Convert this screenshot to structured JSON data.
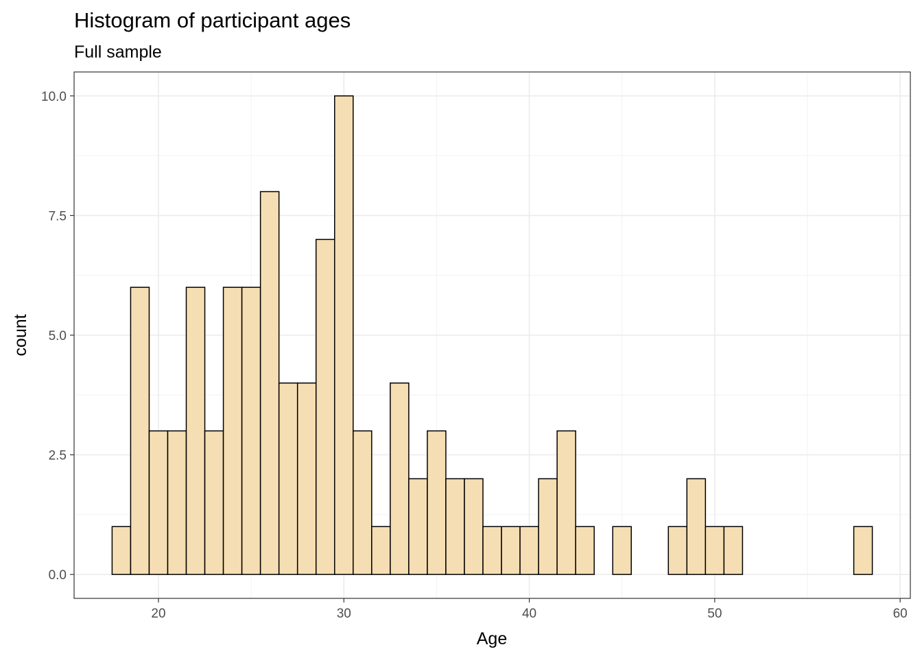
{
  "chart_data": {
    "type": "bar",
    "title": "Histogram of participant ages",
    "subtitle": "Full sample",
    "xlabel": "Age",
    "ylabel": "count",
    "bin_width": 1,
    "bins": [
      {
        "x": 18,
        "count": 1
      },
      {
        "x": 19,
        "count": 6
      },
      {
        "x": 20,
        "count": 3
      },
      {
        "x": 21,
        "count": 3
      },
      {
        "x": 22,
        "count": 6
      },
      {
        "x": 23,
        "count": 3
      },
      {
        "x": 24,
        "count": 6
      },
      {
        "x": 25,
        "count": 6
      },
      {
        "x": 26,
        "count": 8
      },
      {
        "x": 27,
        "count": 4
      },
      {
        "x": 28,
        "count": 4
      },
      {
        "x": 29,
        "count": 7
      },
      {
        "x": 30,
        "count": 10
      },
      {
        "x": 31,
        "count": 3
      },
      {
        "x": 32,
        "count": 1
      },
      {
        "x": 33,
        "count": 4
      },
      {
        "x": 34,
        "count": 2
      },
      {
        "x": 35,
        "count": 3
      },
      {
        "x": 36,
        "count": 2
      },
      {
        "x": 37,
        "count": 2
      },
      {
        "x": 38,
        "count": 1
      },
      {
        "x": 39,
        "count": 1
      },
      {
        "x": 40,
        "count": 1
      },
      {
        "x": 41,
        "count": 2
      },
      {
        "x": 42,
        "count": 3
      },
      {
        "x": 43,
        "count": 1
      },
      {
        "x": 44,
        "count": 0
      },
      {
        "x": 45,
        "count": 1
      },
      {
        "x": 46,
        "count": 0
      },
      {
        "x": 47,
        "count": 0
      },
      {
        "x": 48,
        "count": 1
      },
      {
        "x": 49,
        "count": 2
      },
      {
        "x": 50,
        "count": 1
      },
      {
        "x": 51,
        "count": 1
      },
      {
        "x": 52,
        "count": 0
      },
      {
        "x": 53,
        "count": 0
      },
      {
        "x": 54,
        "count": 0
      },
      {
        "x": 55,
        "count": 0
      },
      {
        "x": 56,
        "count": 0
      },
      {
        "x": 57,
        "count": 0
      },
      {
        "x": 58,
        "count": 1
      }
    ],
    "xlim": [
      15.45,
      60.55
    ],
    "ylim": [
      -0.5,
      10.5
    ],
    "x_ticks": [
      20,
      30,
      40,
      50,
      60
    ],
    "x_tick_labels": [
      "20",
      "30",
      "40",
      "50",
      "60"
    ],
    "y_ticks": [
      0,
      2.5,
      5,
      7.5,
      10
    ],
    "y_tick_labels": [
      "0.0",
      "2.5",
      "5.0",
      "7.5",
      "10.0"
    ],
    "grid": true,
    "bar_fill": "#F5DEB3",
    "bar_outline": "#000000"
  }
}
